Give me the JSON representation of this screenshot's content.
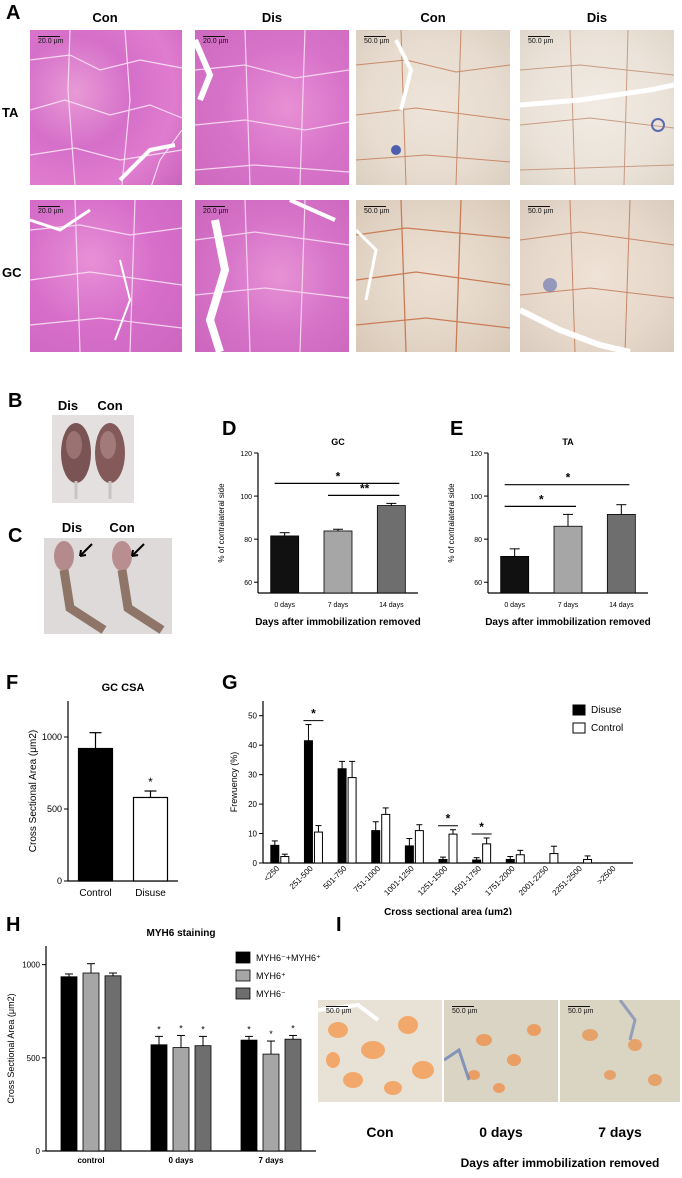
{
  "panel_labels": {
    "A": "A",
    "B": "B",
    "C": "C",
    "D": "D",
    "E": "E",
    "F": "F",
    "G": "G",
    "H": "H",
    "I": "I"
  },
  "panelA": {
    "col_headers": [
      "Con",
      "Dis",
      "Con",
      "Dis"
    ],
    "row_labels": [
      "TA",
      "GC"
    ],
    "scale_he": "20.0 µm",
    "scale_ihc": "50.0 µm"
  },
  "panelB": {
    "dis": "Dis",
    "con": "Con"
  },
  "panelC": {
    "dis": "Dis",
    "con": "Con"
  },
  "panelI": {
    "captions": [
      "Con",
      "0 days",
      "7 days"
    ],
    "xlabel": "Days after immobilization removed",
    "scale": "50.0 µm"
  },
  "chart_data": [
    {
      "id": "D",
      "type": "bar",
      "title": "GC",
      "ylabel": "% of contralateral side",
      "xlabel": "Days  after immobilization removed",
      "categories": [
        "0 days",
        "7 days",
        "14 days"
      ],
      "values": [
        81.5,
        83.8,
        95.6
      ],
      "errors": [
        1.5,
        0.8,
        1.0
      ],
      "colors": [
        "#111111",
        "#a6a6a6",
        "#6e6e6e"
      ],
      "ylim": [
        55,
        120
      ],
      "yticks": [
        60,
        80,
        100,
        120
      ],
      "significance": [
        {
          "from": 0,
          "to": 2,
          "label": "*"
        },
        {
          "from": 1,
          "to": 2,
          "label": "**"
        }
      ]
    },
    {
      "id": "E",
      "type": "bar",
      "title": "TA",
      "ylabel": "% of contralateral side",
      "xlabel": "Days  after immobilization removed",
      "categories": [
        "0 days",
        "7 days",
        "14 days"
      ],
      "values": [
        72,
        86,
        91.5
      ],
      "errors": [
        3.5,
        5.5,
        4.5
      ],
      "colors": [
        "#111111",
        "#a6a6a6",
        "#6e6e6e"
      ],
      "ylim": [
        55,
        120
      ],
      "yticks": [
        60,
        80,
        100,
        120
      ],
      "significance": [
        {
          "from": 0,
          "to": 1,
          "label": "*"
        },
        {
          "from": 0,
          "to": 2,
          "label": "*"
        }
      ]
    },
    {
      "id": "F",
      "type": "bar",
      "title": "GC CSA",
      "ylabel": "Cross Sectional Area (μm2)",
      "categories": [
        "Control",
        "Disuse"
      ],
      "values": [
        920,
        580
      ],
      "errors": [
        110,
        45
      ],
      "colors": [
        "#000000",
        "#ffffff"
      ],
      "ylim": [
        0,
        1250
      ],
      "yticks": [
        0,
        500,
        1000
      ],
      "annotations": [
        {
          "index": 1,
          "label": "*"
        }
      ]
    },
    {
      "id": "G",
      "type": "bar",
      "ylabel": "Frewuency (%)",
      "xlabel": "Cross sectional area (μm2)",
      "categories": [
        "<250",
        "251-500",
        "501-750",
        "751-1000",
        "1001-1250",
        "1251-1500",
        "1501-1750",
        "1751-2000",
        "2001-2250",
        "2251-2500",
        ">2500"
      ],
      "series": [
        {
          "name": "Disuse",
          "color": "#000000",
          "values": [
            6,
            41.5,
            32,
            11,
            5.8,
            1.2,
            1,
            1.2,
            0,
            0,
            0
          ],
          "errors": [
            1.5,
            5.5,
            2.5,
            3,
            2.5,
            0.8,
            0.8,
            1,
            0,
            0,
            0
          ]
        },
        {
          "name": "Control",
          "color": "#ffffff",
          "values": [
            2.2,
            10.5,
            29,
            16.5,
            11,
            9.8,
            6.5,
            2.8,
            3.2,
            1.2,
            0
          ],
          "errors": [
            0.8,
            2.2,
            5.5,
            2.2,
            2,
            1.5,
            2,
            1.5,
            2.5,
            1.2,
            0
          ]
        }
      ],
      "ylim": [
        0,
        55
      ],
      "yticks": [
        0,
        10,
        20,
        30,
        40,
        50
      ],
      "significance": [
        {
          "index": 1,
          "label": "*"
        },
        {
          "index": 5,
          "label": "*"
        },
        {
          "index": 6,
          "label": "*"
        }
      ]
    },
    {
      "id": "H",
      "type": "bar",
      "title": "MYH6 staining",
      "ylabel": "Cross Sectional Area (μm2)",
      "categories": [
        "control",
        "0 days",
        "7 days"
      ],
      "series": [
        {
          "name": "MYH6⁻+MYH6⁺",
          "color": "#000000",
          "values": [
            935,
            570,
            595
          ],
          "errors": [
            15,
            45,
            20
          ]
        },
        {
          "name": "MYH6⁺",
          "color": "#a6a6a6",
          "values": [
            955,
            555,
            520
          ],
          "errors": [
            50,
            65,
            70
          ]
        },
        {
          "name": "MYH6⁻",
          "color": "#6e6e6e",
          "values": [
            940,
            565,
            600
          ],
          "errors": [
            15,
            50,
            20
          ]
        }
      ],
      "ylim": [
        0,
        1100
      ],
      "yticks": [
        0,
        500,
        1000
      ],
      "annotations": [
        {
          "category": 1,
          "label": "*"
        },
        {
          "category": 2,
          "label": "*"
        }
      ]
    }
  ]
}
